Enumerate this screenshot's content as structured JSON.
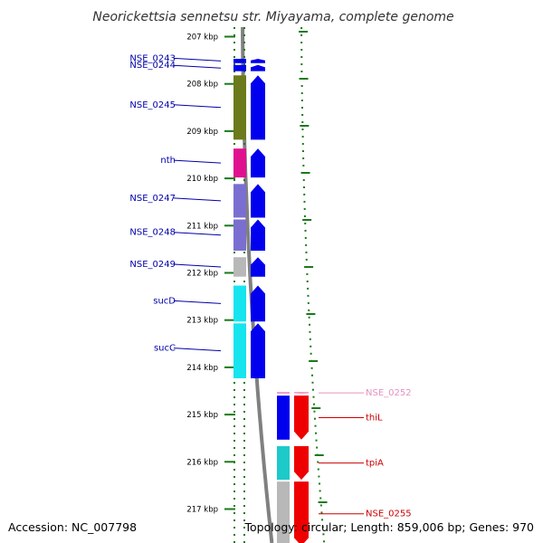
{
  "title": "Neorickettsia sennetsu str. Miyayama, complete genome",
  "footer": {
    "accession": "Accession: NC_007798",
    "summary": "Topology: circular; Length: 859,006 bp; Genes: 970"
  },
  "colors": {
    "blue": "#0000ee",
    "olive": "#6b7a1a",
    "magenta": "#e0118f",
    "lavender": "#7a6fd0",
    "gray": "#b8b8b8",
    "cyan": "#16e4ee",
    "teal": "#1ccac9",
    "red": "#ee0000",
    "pink": "#f0a0c8",
    "label_blue": "#0000aa",
    "label_red": "#cc0000",
    "label_pink": "#e890c0",
    "scale_green": "#1a7a1a",
    "backbone": "#808080"
  },
  "axis": {
    "unit": "kbp",
    "ticks": [
      {
        "value": 207,
        "label": "207 kbp"
      },
      {
        "value": 208,
        "label": "208 kbp"
      },
      {
        "value": 209,
        "label": "209 kbp"
      },
      {
        "value": 210,
        "label": "210 kbp"
      },
      {
        "value": 211,
        "label": "211 kbp"
      },
      {
        "value": 212,
        "label": "212 kbp"
      },
      {
        "value": 213,
        "label": "213 kbp"
      },
      {
        "value": 214,
        "label": "214 kbp"
      },
      {
        "value": 215,
        "label": "215 kbp"
      },
      {
        "value": 216,
        "label": "216 kbp"
      },
      {
        "value": 217,
        "label": "217 kbp"
      }
    ]
  },
  "genes": [
    {
      "name": "NSE_0243",
      "start": 207.45,
      "end": 207.58,
      "strand": "+",
      "color": "blue",
      "label_color": "label_blue",
      "block": "blue"
    },
    {
      "name": "NSE_0244",
      "start": 207.58,
      "end": 207.75,
      "strand": "+",
      "color": "blue",
      "label_color": "label_blue",
      "block": "blue"
    },
    {
      "name": "NSE_0245",
      "start": 207.8,
      "end": 209.2,
      "strand": "+",
      "color": "blue",
      "label_color": "label_blue",
      "block": "olive"
    },
    {
      "name": "nth",
      "start": 209.35,
      "end": 210.0,
      "strand": "+",
      "color": "blue",
      "label_color": "label_blue",
      "block": "magenta"
    },
    {
      "name": "NSE_0247",
      "start": 210.1,
      "end": 210.85,
      "strand": "+",
      "color": "blue",
      "label_color": "label_blue",
      "block": "lavender"
    },
    {
      "name": "NSE_0248",
      "start": 210.85,
      "end": 211.55,
      "strand": "+",
      "color": "blue",
      "label_color": "label_blue",
      "block": "lavender"
    },
    {
      "name": "NSE_0249",
      "start": 211.65,
      "end": 212.1,
      "strand": "+",
      "color": "blue",
      "label_color": "label_blue",
      "block": "gray"
    },
    {
      "name": "sucD",
      "start": 212.25,
      "end": 213.05,
      "strand": "+",
      "color": "blue",
      "label_color": "label_blue",
      "block": "cyan"
    },
    {
      "name": "sucC",
      "start": 213.05,
      "end": 214.25,
      "strand": "+",
      "color": "blue",
      "label_color": "label_blue",
      "block": "cyan"
    },
    {
      "name": "NSE_0252",
      "start": 214.5,
      "end": 214.58,
      "strand": "-",
      "color": "pink",
      "label_color": "label_pink",
      "block": "pink"
    },
    {
      "name": "thiL",
      "start": 214.58,
      "end": 215.55,
      "strand": "-",
      "color": "red",
      "label_color": "label_red",
      "block": "blue"
    },
    {
      "name": "tpiA",
      "start": 215.65,
      "end": 216.4,
      "strand": "-",
      "color": "red",
      "label_color": "label_red",
      "block": "teal"
    },
    {
      "name": "NSE_0255",
      "start": 216.4,
      "end": 217.8,
      "strand": "-",
      "color": "red",
      "label_color": "label_red",
      "block": "gray"
    }
  ]
}
